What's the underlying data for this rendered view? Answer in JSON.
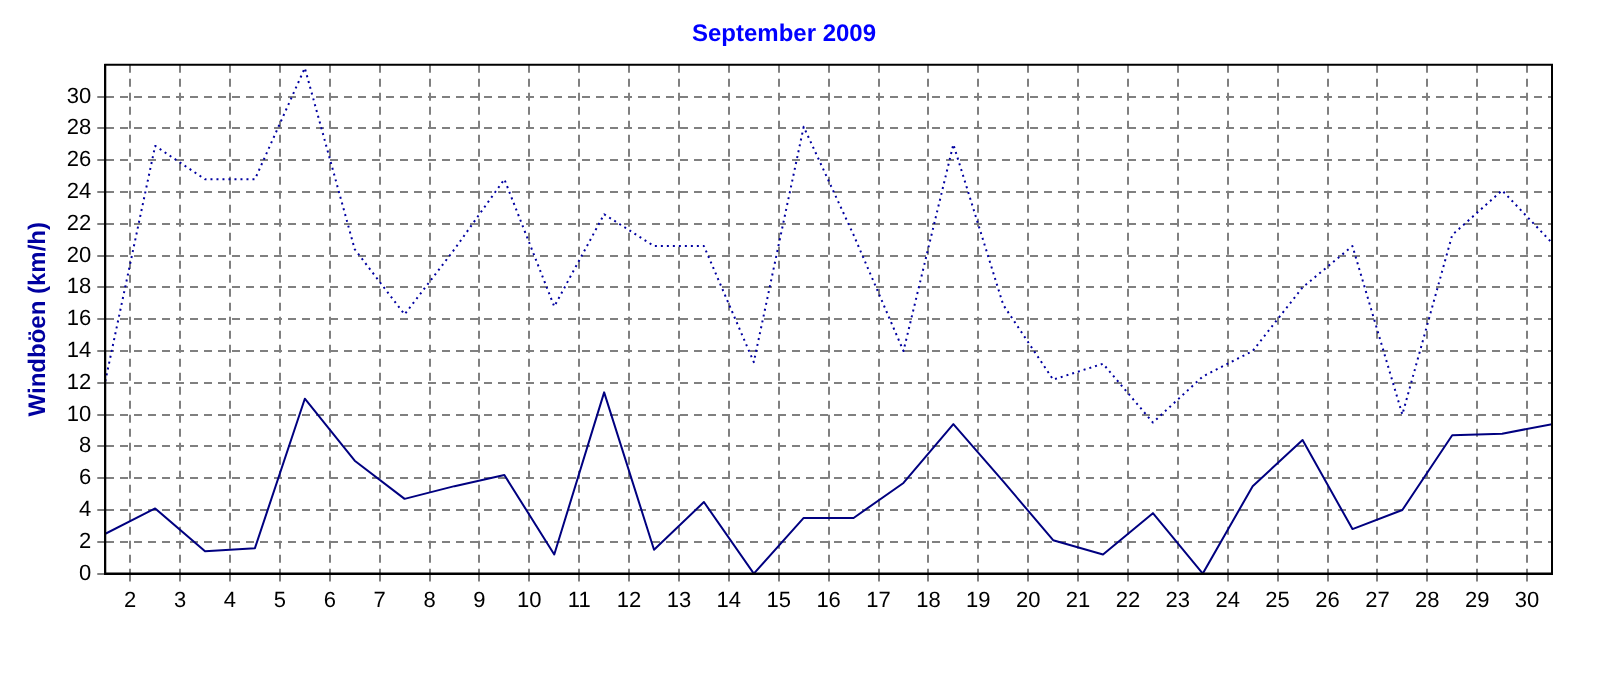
{
  "chart_data": {
    "type": "line",
    "title": "September 2009",
    "ylabel": "Windböen (km/h)",
    "x": [
      1.5,
      2.5,
      3.5,
      4.5,
      5.5,
      6.5,
      7.5,
      8.5,
      9.5,
      10.5,
      11.5,
      12.5,
      13.5,
      14.5,
      15.5,
      16.5,
      17.5,
      18.5,
      19.5,
      20.5,
      21.5,
      22.5,
      23.5,
      24.5,
      25.5,
      26.5,
      27.5,
      28.5,
      29.5,
      30.5
    ],
    "series": [
      {
        "color": "#0000a0",
        "line_style": "dotted",
        "values": [
          12.1,
          26.9,
          24.8,
          24.8,
          31.8,
          20.4,
          16.3,
          20.4,
          24.8,
          16.8,
          22.6,
          20.6,
          20.6,
          13.3,
          28.1,
          21.3,
          14.0,
          27.0,
          16.9,
          12.2,
          13.2,
          9.5,
          12.4,
          14.0,
          18.0,
          20.6,
          10.0,
          21.3,
          24.1,
          20.8
        ]
      },
      {
        "color": "#000080",
        "line_style": "solid",
        "values": [
          2.5,
          4.1,
          1.4,
          1.6,
          11.0,
          7.1,
          4.7,
          5.5,
          6.2,
          1.2,
          11.4,
          1.5,
          4.5,
          0,
          3.5,
          3.5,
          5.7,
          9.4,
          5.8,
          2.1,
          1.2,
          3.8,
          0,
          5.5,
          8.4,
          2.8,
          4.0,
          8.7,
          8.8,
          9.4
        ]
      }
    ],
    "xlim": [
      1.5,
      30.5
    ],
    "xticks": [
      2,
      3,
      4,
      5,
      6,
      7,
      8,
      9,
      10,
      11,
      12,
      13,
      14,
      15,
      16,
      17,
      18,
      19,
      20,
      21,
      22,
      23,
      24,
      25,
      26,
      27,
      28,
      29,
      30
    ],
    "ylim": [
      0,
      32
    ],
    "yticks": [
      0,
      2,
      4,
      6,
      8,
      10,
      12,
      14,
      16,
      18,
      20,
      22,
      24,
      26,
      28,
      30
    ],
    "grid": true,
    "legend": false,
    "marker": "none"
  }
}
